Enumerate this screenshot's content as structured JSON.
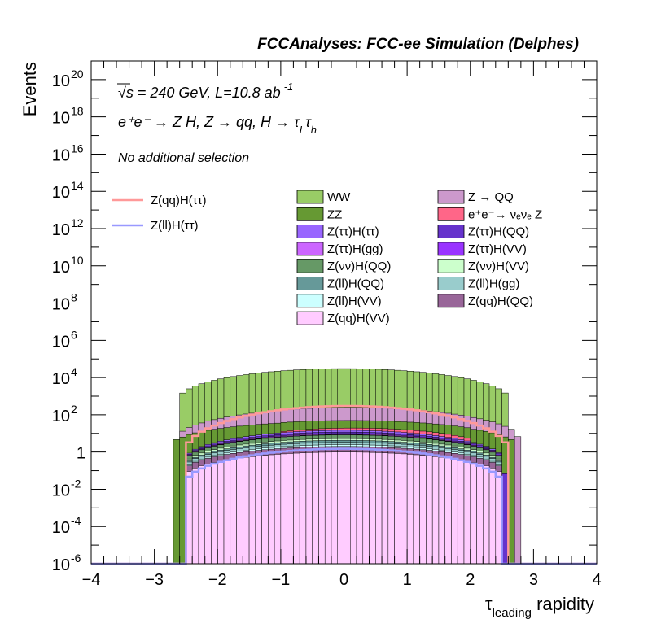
{
  "chart_data": {
    "type": "histogram",
    "title": "FCCAnalyses: FCC-ee Simulation (Delphes)",
    "annotations": {
      "energy": "√s = 240 GeV, L=10.8 ab",
      "energy_sup": "-1",
      "process": "e⁺e⁻ → Z H, Z → qq, H → τ",
      "process_sub1": "L",
      "process_tau": "τ",
      "process_sub2": "h",
      "selection": "No additional selection"
    },
    "xlabel": "τ",
    "xlabel_sub": "leading",
    "xlabel_rest": " rapidity",
    "ylabel": "Events",
    "xlim": [
      -4,
      4
    ],
    "ylim": [
      1e-06,
      1e+21
    ],
    "log_y": true,
    "x_ticks": [
      "−4",
      "−3",
      "−2",
      "−1",
      "0",
      "1",
      "2",
      "3",
      "4"
    ],
    "y_ticks": [
      {
        "base": "10",
        "exp": "20",
        "value": 1e+20
      },
      {
        "base": "10",
        "exp": "18",
        "value": 1e+18
      },
      {
        "base": "10",
        "exp": "16",
        "value": 1e+16
      },
      {
        "base": "10",
        "exp": "14",
        "value": 100000000000000.0
      },
      {
        "base": "10",
        "exp": "12",
        "value": 1000000000000.0
      },
      {
        "base": "10",
        "exp": "10",
        "value": 10000000000.0
      },
      {
        "base": "10",
        "exp": "8",
        "value": 100000000.0
      },
      {
        "base": "10",
        "exp": "6",
        "value": 1000000.0
      },
      {
        "base": "10",
        "exp": "4",
        "value": 10000.0
      },
      {
        "base": "10",
        "exp": "2",
        "value": 100.0
      },
      {
        "base": "1",
        "exp": "",
        "value": 1
      },
      {
        "base": "10",
        "exp": "-2",
        "value": 0.01
      },
      {
        "base": "10",
        "exp": "-4",
        "value": 0.0001
      },
      {
        "base": "10",
        "exp": "-6",
        "value": 1e-06
      }
    ],
    "bin_width": 0.1,
    "signals": [
      {
        "name": "Z(qq)H(ττ)",
        "color": "#ff9999",
        "x_range": [
          -2.5,
          2.6
        ],
        "y_edge": 1.1,
        "y_peak": 300
      },
      {
        "name": "Z(ll)H(ττ)",
        "color": "#9999ff",
        "x_range": [
          -2.5,
          2.5
        ],
        "y_edge": 0.02,
        "y_peak": 1.5
      }
    ],
    "backgrounds": [
      {
        "name": "WW",
        "color": "#99cc66",
        "x_range": [
          -2.6,
          2.6
        ],
        "y_edge": 700,
        "y_peak": 30000
      },
      {
        "name": "Z → QQ",
        "color": "#cc99cc",
        "x_range": [
          -2.6,
          2.8
        ],
        "y_edge": 3,
        "y_peak": 200
      },
      {
        "name": "ZZ",
        "color": "#669933",
        "x_range": [
          -2.7,
          2.7
        ],
        "y_edge": 3,
        "y_peak": 30
      },
      {
        "name": "e⁺e⁻→ νₑνₑ Z",
        "color": "#ff6688",
        "x_range": [
          -1.0,
          2.0
        ],
        "y_edge": 1,
        "y_peak": 5
      },
      {
        "name": "Z(ττ)H(ττ)",
        "color": "#9966ff",
        "x_range": [
          -2.5,
          2.5
        ],
        "y_edge": 0.05,
        "y_peak": 3
      },
      {
        "name": "Z(ττ)H(QQ)",
        "color": "#6633cc",
        "x_range": [
          -2.5,
          2.6
        ],
        "y_edge": 0.03,
        "y_peak": 2
      },
      {
        "name": "Z(ττ)H(gg)",
        "color": "#cc66ff",
        "x_range": [
          -2.5,
          2.5
        ],
        "y_edge": 0.02,
        "y_peak": 1
      },
      {
        "name": "Z(ττ)H(VV)",
        "color": "#9933ff",
        "x_range": [
          -2.5,
          2.5
        ],
        "y_edge": 0.01,
        "y_peak": 0.5
      },
      {
        "name": "Z(νν)H(QQ)",
        "color": "#669966",
        "x_range": [
          -2.5,
          2.5
        ],
        "y_edge": 0.1,
        "y_peak": 3
      },
      {
        "name": "Z(νν)H(VV)",
        "color": "#ccffcc",
        "x_range": [
          -2.5,
          2.5
        ],
        "y_edge": 0.05,
        "y_peak": 1
      },
      {
        "name": "Z(ll)H(QQ)",
        "color": "#669999",
        "x_range": [
          -2.5,
          2.5
        ],
        "y_edge": 0.02,
        "y_peak": 1
      },
      {
        "name": "Z(ll)H(gg)",
        "color": "#99cccc",
        "x_range": [
          -2.5,
          2.5
        ],
        "y_edge": 0.05,
        "y_peak": 0.8
      },
      {
        "name": "Z(ll)H(VV)",
        "color": "#ccffff",
        "x_range": [
          -2.5,
          2.5
        ],
        "y_edge": 0.01,
        "y_peak": 0.5
      },
      {
        "name": "Z(qq)H(QQ)",
        "color": "#996699",
        "x_range": [
          -2.5,
          2.5
        ],
        "y_edge": 0.05,
        "y_peak": 1
      },
      {
        "name": "Z(qq)H(VV)",
        "color": "#ffccff",
        "x_range": [
          -2.5,
          2.5
        ],
        "y_edge": 0.05,
        "y_peak": 1
      }
    ]
  }
}
